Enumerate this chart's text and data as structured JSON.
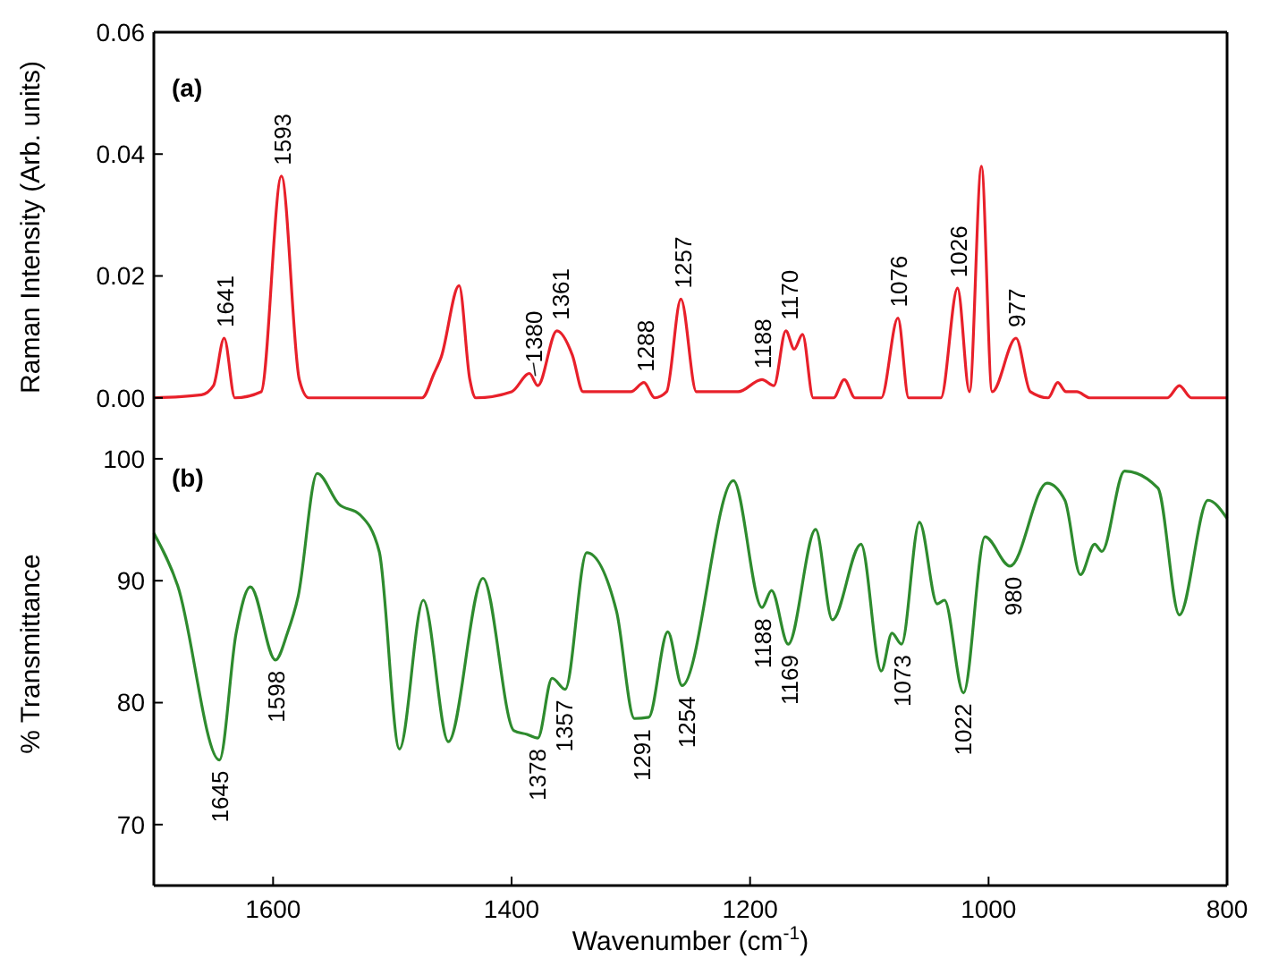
{
  "chart_data": [
    {
      "type": "line",
      "ylabel": "Raman Intensity (Arb. units)",
      "xlim": [
        1700,
        800
      ],
      "ylim": [
        -0.004,
        0.06
      ],
      "yticks": [
        {
          "value": 0,
          "label": "0.00"
        },
        {
          "value": 0.02,
          "label": "0.02"
        },
        {
          "value": 0.04,
          "label": "0.04"
        },
        {
          "value": 0.06,
          "label": "0.06"
        }
      ],
      "tick_labels": "y",
      "x": [
        1700,
        1660,
        1650,
        1641,
        1632,
        1610,
        1593,
        1578,
        1570,
        1475,
        1465,
        1459,
        1444,
        1435,
        1430,
        1400,
        1385,
        1378,
        1362,
        1349,
        1340,
        1300,
        1289,
        1280,
        1270,
        1258,
        1245,
        1210,
        1190,
        1180,
        1170,
        1163,
        1156,
        1147,
        1130,
        1121,
        1112,
        1090,
        1076,
        1067,
        1040,
        1026,
        1016,
        1006,
        997,
        977,
        965,
        950,
        942,
        935,
        926,
        915,
        850,
        840,
        830,
        800
      ],
      "series": [
        {
          "color": "#e8202a",
          "values": [
            0,
            0.0005,
            0.002,
            0.0098,
            0,
            0.001,
            0.0364,
            0.003,
            0,
            0,
            0.004,
            0.0067,
            0.0184,
            0.003,
            0,
            0.001,
            0.004,
            0.002,
            0.011,
            0.007,
            0.001,
            0.001,
            0.0025,
            0,
            0.001,
            0.0162,
            0.001,
            0.001,
            0.003,
            0.002,
            0.011,
            0.008,
            0.0104,
            0,
            0,
            0.003,
            0,
            0,
            0.0131,
            0,
            0,
            0.018,
            0.001,
            0.038,
            0.001,
            0.0098,
            0.001,
            0,
            0.0025,
            0.001,
            0.001,
            0,
            0,
            0.002,
            0,
            0
          ]
        }
      ],
      "annotations": [
        "(a)",
        {
          "text": "1641",
          "x": 1641,
          "y": 0.0098
        },
        {
          "text": "1593",
          "x": 1593,
          "y": 0.0364
        },
        {
          "text": "1380",
          "x": 1380,
          "y": 0.003
        },
        {
          "text": "1361",
          "x": 1361,
          "y": 0.011
        },
        {
          "text": "1288",
          "x": 1288,
          "y": 0.0025
        },
        {
          "text": "1257",
          "x": 1257,
          "y": 0.0162
        },
        {
          "text": "1188",
          "x": 1188,
          "y": 0.003
        },
        {
          "text": "1170",
          "x": 1170,
          "y": 0.011
        },
        {
          "text": "1076",
          "x": 1076,
          "y": 0.0131
        },
        {
          "text": "1026",
          "x": 1026,
          "y": 0.018
        },
        {
          "text": "977",
          "x": 977,
          "y": 0.0098
        }
      ]
    },
    {
      "type": "line",
      "xlabel": "Wavenumber (cm$^{-1}$)",
      "ylabel": "% Transmittance",
      "xlim": [
        1700,
        800
      ],
      "ylim": [
        65,
        103
      ],
      "xticks": [
        1600,
        1400,
        1200,
        1000,
        800
      ],
      "yticks": [
        70,
        80,
        90,
        100
      ],
      "x": [
        1700,
        1680,
        1645,
        1631,
        1619,
        1598,
        1588,
        1579,
        1563,
        1545,
        1527,
        1511,
        1494,
        1474,
        1453,
        1424,
        1398,
        1387,
        1378,
        1366,
        1355,
        1337,
        1312,
        1297,
        1285,
        1269,
        1257,
        1214,
        1190,
        1182,
        1168,
        1145,
        1131,
        1107,
        1090,
        1081,
        1073,
        1058,
        1043,
        1037,
        1021,
        1003,
        982,
        951,
        936,
        923,
        911,
        905,
        886,
        858,
        840,
        816,
        800
      ],
      "series": [
        {
          "color": "#2e8b2e",
          "values": [
            93.9,
            89.6,
            75.3,
            85.7,
            89.5,
            83.5,
            85.7,
            88.7,
            98.8,
            96.3,
            95.4,
            92.4,
            76.2,
            88.4,
            76.8,
            90.2,
            77.7,
            77.4,
            77.1,
            82.0,
            81.1,
            92.3,
            87.5,
            78.7,
            78.8,
            85.8,
            81.4,
            98.2,
            87.8,
            89.2,
            84.8,
            94.2,
            86.8,
            93.0,
            82.6,
            85.7,
            84.8,
            94.8,
            88.1,
            88.4,
            80.8,
            93.6,
            91.2,
            98.0,
            96.6,
            90.5,
            93.0,
            92.4,
            99.0,
            97.6,
            87.2,
            96.6,
            95.1
          ]
        }
      ],
      "annotations": [
        "(b)",
        {
          "text": "1645",
          "x": 1645,
          "y": 75.3
        },
        {
          "text": "1598",
          "x": 1598,
          "y": 83.5
        },
        {
          "text": "1378",
          "x": 1378,
          "y": 77.1
        },
        {
          "text": "1357",
          "x": 1357,
          "y": 81.1
        },
        {
          "text": "1291",
          "x": 1291,
          "y": 78.7
        },
        {
          "text": "1254",
          "x": 1254,
          "y": 81.4
        },
        {
          "text": "1188",
          "x": 1188,
          "y": 87.8
        },
        {
          "text": "1169",
          "x": 1169,
          "y": 84.8
        },
        {
          "text": "1073",
          "x": 1073,
          "y": 84.8
        },
        {
          "text": "1022",
          "x": 1022,
          "y": 80.8
        },
        {
          "text": "980",
          "x": 980,
          "y": 91.2
        }
      ]
    }
  ]
}
